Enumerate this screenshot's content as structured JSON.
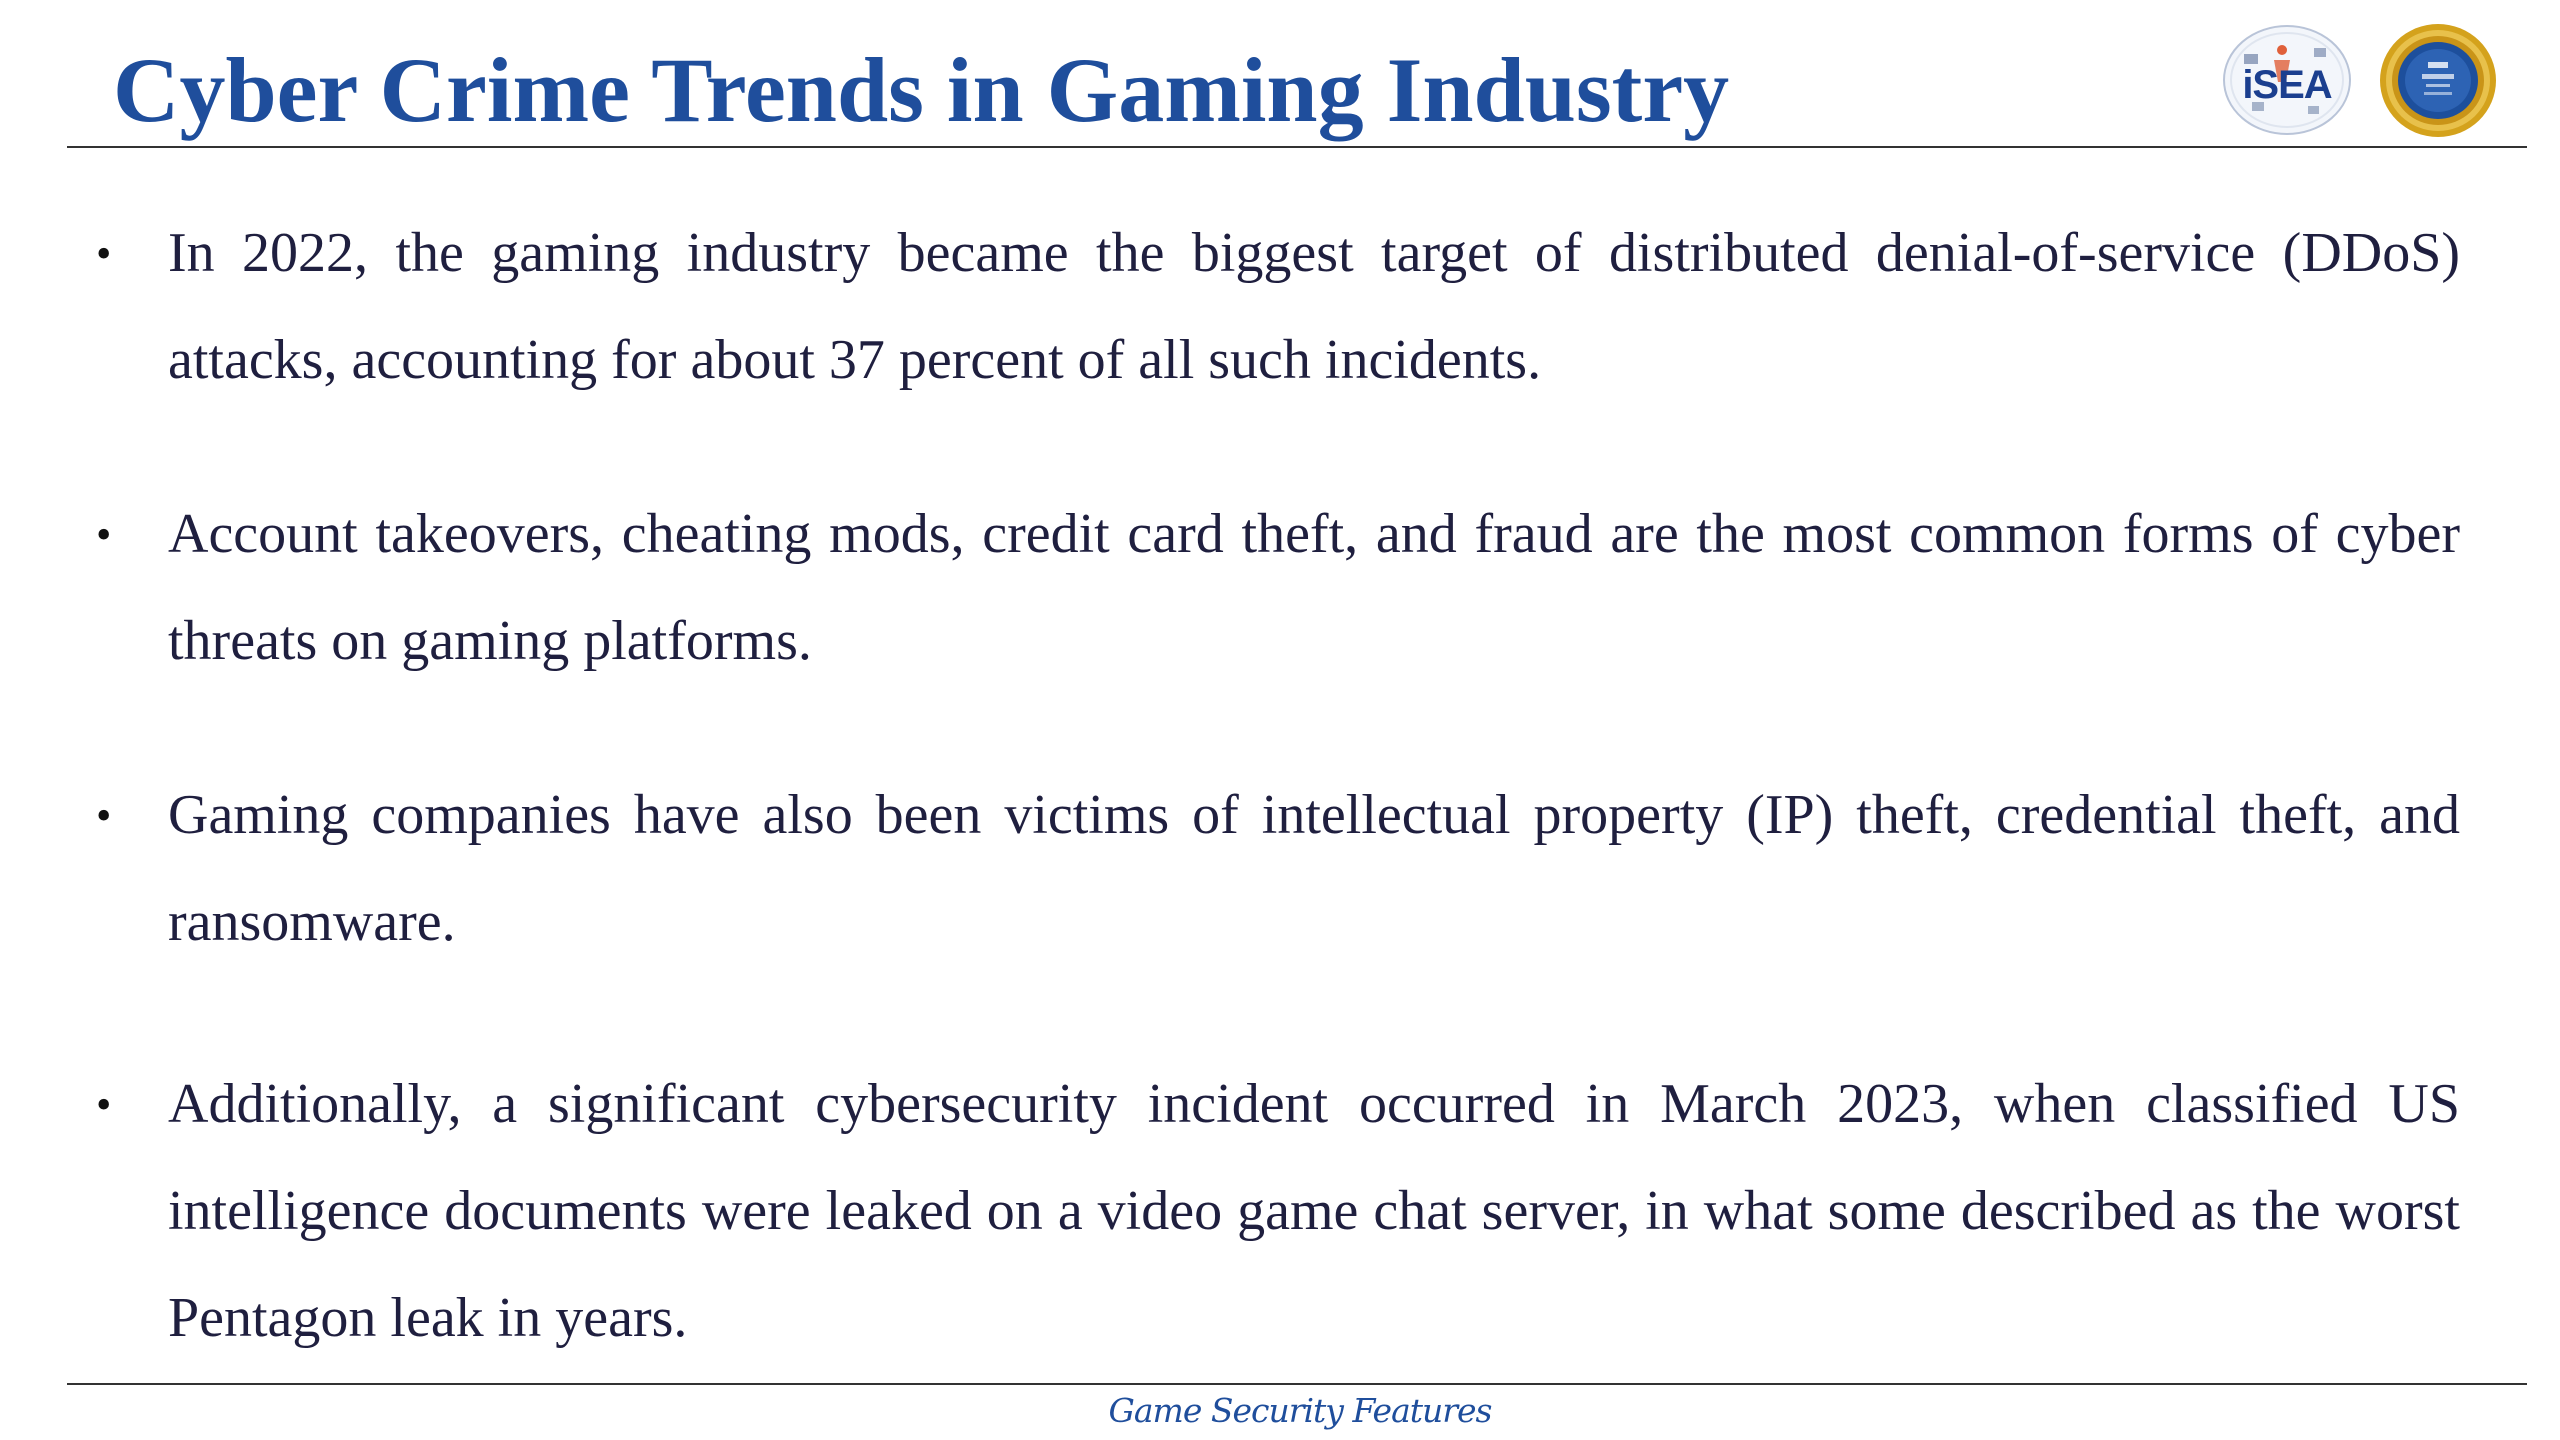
{
  "slide": {
    "title": "Cyber Crime Trends in Gaming Industry",
    "footer": "Game Security Features",
    "logos": [
      {
        "name": "ISEA",
        "text": "iSEA",
        "color": "#1b3f8f"
      },
      {
        "name": "CDAC seal",
        "color": "#1d4f9c",
        "ring_color": "#d4a21c"
      }
    ],
    "bullets": [
      "In 2022, the gaming industry became the biggest target of distributed denial-of-service (DDoS) attacks, accounting for about 37 percent of all such incidents.",
      "Account takeovers, cheating mods, credit card theft, and fraud are the most common forms of cyber threats on gaming platforms.",
      "Gaming companies have also been victims of intellectual property (IP) theft, credential theft, and ransomware.",
      "Additionally, a significant cybersecurity incident occurred in March 2023, when classified US intelligence documents were leaked on a video game chat server, in what some described as the worst Pentagon leak in years."
    ],
    "bullet_symbol": "•",
    "colors": {
      "title": "#1f4e9c",
      "body": "#1f1f3f",
      "rule": "#333333"
    }
  }
}
